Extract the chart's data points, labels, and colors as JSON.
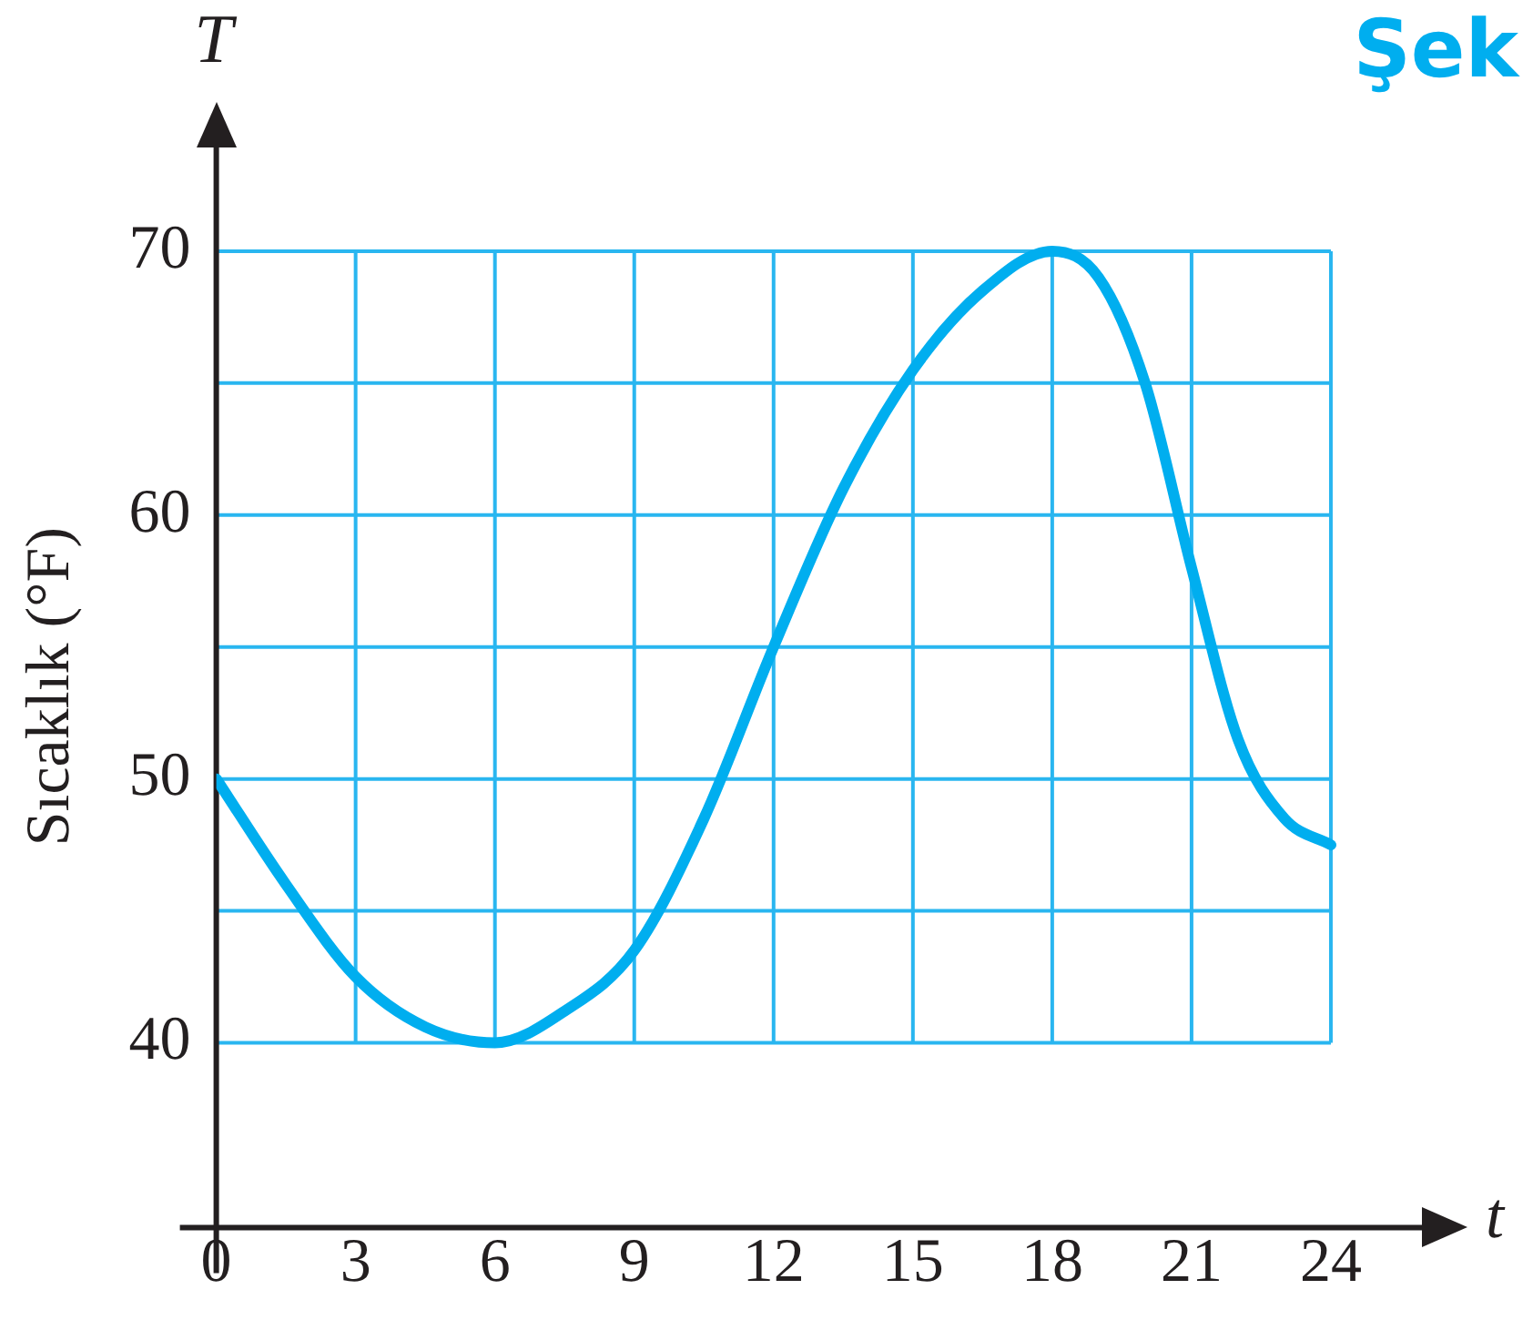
{
  "chart_data": {
    "type": "line",
    "xlabel": "t",
    "ylabel": "Sıcaklık (°F)",
    "annotations": [
      "T",
      "Şek"
    ],
    "x": [
      0,
      1.5,
      3,
      4.5,
      6,
      7.5,
      9,
      10.5,
      12,
      13.5,
      15,
      16.5,
      18,
      19,
      20,
      21,
      22,
      23,
      24
    ],
    "series": [
      {
        "color": "#00aeef",
        "values": [
          50,
          46,
          42.5,
          40.6,
          40,
          41.2,
          43.5,
          48.5,
          55,
          61,
          65.5,
          68.5,
          70,
          69,
          65,
          58,
          51.5,
          48.5,
          47.5
        ]
      }
    ],
    "xlim": [
      0,
      26
    ],
    "xticks": [
      0,
      3,
      6,
      9,
      12,
      15,
      18,
      21,
      24
    ],
    "ylim": [
      33,
      74
    ],
    "yticks": [
      40,
      {
        "value": 45,
        "label": null
      },
      50,
      {
        "value": 55,
        "label": null
      },
      60,
      {
        "value": 65,
        "label": null
      },
      70
    ],
    "grid": true,
    "legend": false,
    "marker": "none",
    "line_style": "solid"
  }
}
